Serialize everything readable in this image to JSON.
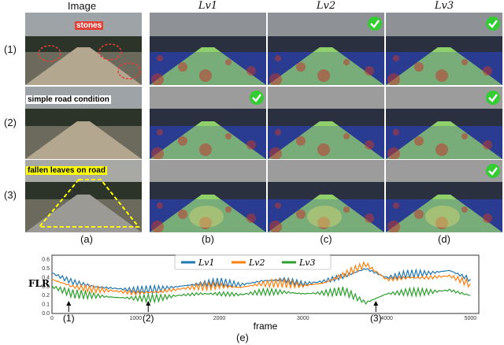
{
  "headers": [
    "Image",
    "Lv1",
    "Lv2",
    "Lv3"
  ],
  "row_labels": [
    "(1)",
    "(2)",
    "(3)"
  ],
  "column_labels": [
    "(a)",
    "(b)",
    "(c)",
    "(d)"
  ],
  "annotations": {
    "row1": "stones",
    "row2": "simple road condition",
    "row3": "fallen leaves on road"
  },
  "colors": {
    "stones_box": "#e0423a",
    "leaves_box": "#ffff00",
    "check": "#33cc33",
    "lv1": "#1f77b4",
    "lv2": "#ff7f0e",
    "lv3": "#2ca02c"
  },
  "icons": [
    "check-circle-icon"
  ],
  "chart_data": {
    "type": "line",
    "ylabel": "FLR",
    "xlabel": "frame",
    "caption": "(e)",
    "xlim": [
      0,
      5100
    ],
    "ylim": [
      0.0,
      0.65
    ],
    "xticks": [
      "0",
      "1000",
      "2000",
      "3000",
      "4000",
      "5000"
    ],
    "yticks": [
      "0.0",
      "0.1",
      "0.2",
      "0.3",
      "0.4",
      "0.5",
      "0.6"
    ],
    "legend_position": "top-center",
    "series": [
      {
        "name": "Lv1",
        "x": [
          0,
          250,
          500,
          750,
          1000,
          1250,
          1500,
          1750,
          2000,
          2250,
          2500,
          2750,
          3000,
          3250,
          3500,
          3750,
          4000,
          4250,
          4500,
          4750,
          5000
        ],
        "values": [
          0.45,
          0.35,
          0.3,
          0.28,
          0.26,
          0.27,
          0.3,
          0.33,
          0.35,
          0.32,
          0.36,
          0.38,
          0.33,
          0.36,
          0.42,
          0.5,
          0.4,
          0.44,
          0.45,
          0.48,
          0.38
        ]
      },
      {
        "name": "Lv2",
        "x": [
          0,
          250,
          500,
          750,
          1000,
          1250,
          1500,
          1750,
          2000,
          2250,
          2500,
          2750,
          3000,
          3250,
          3500,
          3750,
          4000,
          4250,
          4500,
          4750,
          5000
        ],
        "values": [
          0.38,
          0.3,
          0.27,
          0.25,
          0.23,
          0.24,
          0.27,
          0.3,
          0.31,
          0.29,
          0.33,
          0.34,
          0.31,
          0.34,
          0.44,
          0.55,
          0.38,
          0.4,
          0.4,
          0.42,
          0.33
        ]
      },
      {
        "name": "Lv3",
        "x": [
          0,
          250,
          500,
          750,
          1000,
          1250,
          1500,
          1750,
          2000,
          2250,
          2500,
          2750,
          3000,
          3250,
          3500,
          3750,
          4000,
          4250,
          4500,
          4750,
          5000
        ],
        "values": [
          0.3,
          0.22,
          0.2,
          0.18,
          0.17,
          0.17,
          0.2,
          0.22,
          0.22,
          0.21,
          0.24,
          0.24,
          0.22,
          0.23,
          0.25,
          0.12,
          0.22,
          0.24,
          0.24,
          0.26,
          0.2
        ]
      }
    ],
    "markers": [
      {
        "label": "(1)",
        "x": 200
      },
      {
        "label": "(2)",
        "x": 1150
      },
      {
        "label": "(3)",
        "x": 3870
      }
    ]
  }
}
